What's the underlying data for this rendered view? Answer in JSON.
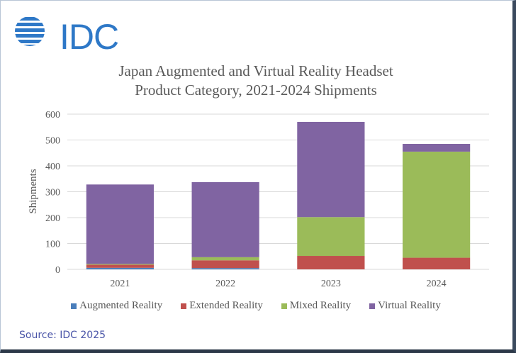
{
  "logo": {
    "text": "IDC"
  },
  "source": "Source: IDC 2025",
  "chart_data": {
    "type": "bar",
    "stacked": true,
    "title": "Japan Augmented and Virtual Reality Headset Product Category, 2021-2024 Shipments",
    "title_lines": [
      "Japan Augmented and Virtual Reality Headset",
      "Product Category, 2021-2024 Shipments"
    ],
    "xlabel": "",
    "ylabel": "Shipments",
    "ylim": [
      0,
      600
    ],
    "yticks": [
      0,
      100,
      200,
      300,
      400,
      500,
      600
    ],
    "grid": true,
    "legend_position": "bottom",
    "categories": [
      "2021",
      "2022",
      "2023",
      "2024"
    ],
    "series": [
      {
        "name": "Augmented Reality",
        "color": "#4a7ebb",
        "values": [
          6,
          5,
          0,
          0
        ]
      },
      {
        "name": "Extended Reality",
        "color": "#c0504d",
        "values": [
          12,
          30,
          52,
          45
        ]
      },
      {
        "name": "Mixed Reality",
        "color": "#9bbb59",
        "values": [
          3,
          12,
          150,
          410
        ]
      },
      {
        "name": "Virtual Reality",
        "color": "#8064a2",
        "values": [
          307,
          290,
          368,
          30
        ]
      }
    ]
  }
}
